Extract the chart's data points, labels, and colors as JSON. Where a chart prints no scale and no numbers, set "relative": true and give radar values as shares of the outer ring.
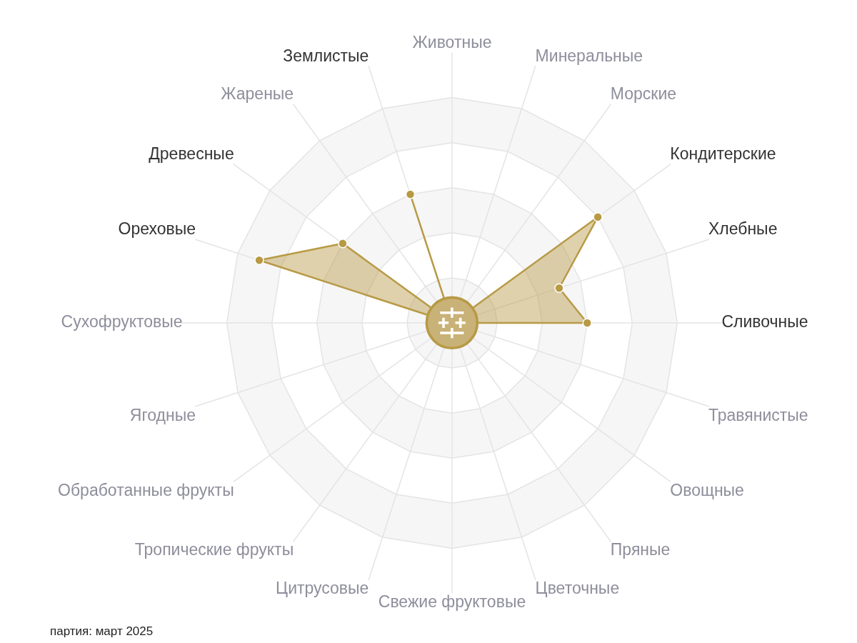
{
  "chart_data": {
    "type": "radar",
    "relative": true,
    "categories": [
      "Животные",
      "Минеральные",
      "Морские",
      "Кондитерские",
      "Хлебные",
      "Сливочные",
      "Травянистые",
      "Овощные",
      "Пряные",
      "Цветочные",
      "Свежие фруктовые",
      "Цитрусовые",
      "Тропические фрукты",
      "Обработанные фрукты",
      "Ягодные",
      "Сухофруктовые",
      "Ореховые",
      "Древесные",
      "Жареные",
      "Землистые"
    ],
    "series": [
      {
        "color": "#b89a45",
        "values": [
          0,
          0,
          0,
          0.8,
          0.5,
          0.6,
          0,
          0,
          0,
          0,
          0,
          0,
          0,
          0,
          0,
          0,
          0.9,
          0.6,
          0,
          0.6
        ]
      }
    ],
    "marker": "circle",
    "legend": false,
    "annotations": [
      "партия: март 2025"
    ]
  }
}
